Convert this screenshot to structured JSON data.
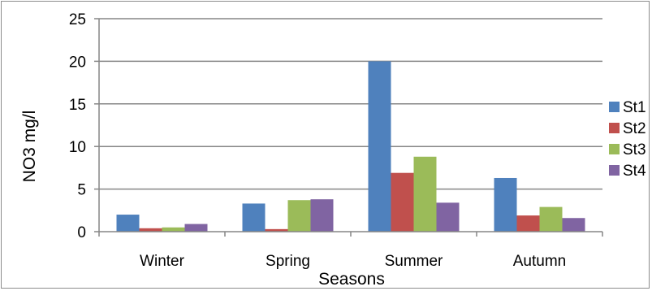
{
  "chart_data": {
    "type": "bar",
    "title": "",
    "xlabel": "Seasons",
    "ylabel": "NO3 mg/l",
    "categories": [
      "Winter",
      "Spring",
      "Summer",
      "Autumn"
    ],
    "series": [
      {
        "name": "St1",
        "color": "#4f81bd",
        "values": [
          2.0,
          3.3,
          20.0,
          6.3
        ]
      },
      {
        "name": "St2",
        "color": "#c0504d",
        "values": [
          0.4,
          0.3,
          6.9,
          1.9
        ]
      },
      {
        "name": "St3",
        "color": "#9bbb59",
        "values": [
          0.5,
          3.7,
          8.8,
          2.9
        ]
      },
      {
        "name": "St4",
        "color": "#8064a2",
        "values": [
          0.9,
          3.8,
          3.4,
          1.6
        ]
      }
    ],
    "ylim": [
      0,
      25
    ],
    "yticks": [
      0,
      5,
      10,
      15,
      20,
      25
    ],
    "grid": true,
    "legend": "right"
  }
}
